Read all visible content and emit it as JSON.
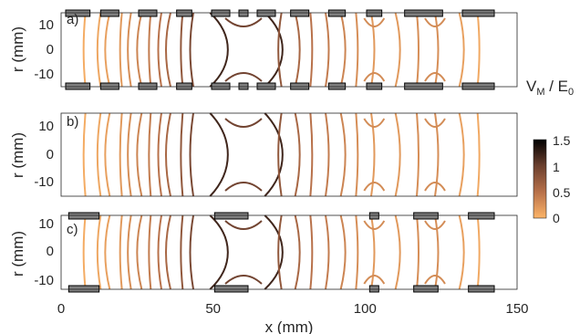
{
  "chart_data": [
    {
      "type": "contour",
      "panel_label": "a)",
      "ylabel": "r (mm)",
      "yticks": [
        "10",
        "0",
        "-10"
      ],
      "xlim": [
        0,
        150
      ],
      "ylim": [
        -15,
        15
      ],
      "electrodes": [
        [
          1.5,
          9.5
        ],
        [
          13,
          19
        ],
        [
          25.5,
          31.5
        ],
        [
          38,
          43
        ],
        [
          49.5,
          55.5
        ],
        [
          58.5,
          61.5
        ],
        [
          64.5,
          70.5
        ],
        [
          75.5,
          81.5
        ],
        [
          88,
          93.5
        ],
        [
          100.5,
          105.5
        ],
        [
          113,
          125.5
        ],
        [
          132,
          142.5
        ]
      ],
      "contours": [
        {
          "x": 8,
          "v": 0.06
        },
        {
          "x": 13,
          "v": 0.1
        },
        {
          "x": 16,
          "v": 0.15
        },
        {
          "x": 20,
          "v": 0.2
        },
        {
          "x": 23,
          "v": 0.28
        },
        {
          "x": 26.5,
          "v": 0.35
        },
        {
          "x": 29.5,
          "v": 0.42
        },
        {
          "x": 33,
          "v": 0.5
        },
        {
          "x": 36,
          "v": 0.6
        },
        {
          "x": 40,
          "v": 0.75
        },
        {
          "x": 43.5,
          "v": 0.9
        },
        {
          "x": 49,
          "v": 1.2,
          "type": "hourglass"
        },
        {
          "x": 67,
          "v": 1.2,
          "type": "hourglass"
        },
        {
          "x": 72.5,
          "v": 0.75
        },
        {
          "x": 77,
          "v": 0.6
        },
        {
          "x": 82,
          "v": 0.5
        },
        {
          "x": 87,
          "v": 0.42
        },
        {
          "x": 92,
          "v": 0.35
        },
        {
          "x": 97,
          "v": 0.28
        },
        {
          "x": 102,
          "v": 0.2
        },
        {
          "x": 110,
          "v": 0.2
        },
        {
          "x": 117,
          "v": 0.28
        },
        {
          "x": 123,
          "v": 0.28
        },
        {
          "x": 131,
          "v": 0.15
        },
        {
          "x": 137,
          "v": 0.08
        }
      ]
    },
    {
      "type": "contour",
      "panel_label": "b)",
      "ylabel": "r (mm)",
      "yticks": [
        "10",
        "0",
        "-10"
      ],
      "xlim": [
        0,
        150
      ],
      "ylim": [
        -15,
        15
      ],
      "electrodes": [],
      "contours": [
        {
          "x": 8,
          "v": 0.06
        },
        {
          "x": 13,
          "v": 0.1
        },
        {
          "x": 16,
          "v": 0.15
        },
        {
          "x": 20,
          "v": 0.2
        },
        {
          "x": 23,
          "v": 0.28
        },
        {
          "x": 26.5,
          "v": 0.35
        },
        {
          "x": 29.5,
          "v": 0.42
        },
        {
          "x": 33,
          "v": 0.5
        },
        {
          "x": 36,
          "v": 0.6
        },
        {
          "x": 40,
          "v": 0.75
        },
        {
          "x": 43.5,
          "v": 0.9
        },
        {
          "x": 49,
          "v": 1.2,
          "type": "hourglass"
        },
        {
          "x": 67,
          "v": 1.2,
          "type": "hourglass"
        },
        {
          "x": 72.5,
          "v": 0.75
        },
        {
          "x": 77,
          "v": 0.6
        },
        {
          "x": 82,
          "v": 0.5
        },
        {
          "x": 87,
          "v": 0.42
        },
        {
          "x": 92,
          "v": 0.35
        },
        {
          "x": 97,
          "v": 0.28
        },
        {
          "x": 102,
          "v": 0.2
        },
        {
          "x": 110,
          "v": 0.2
        },
        {
          "x": 117,
          "v": 0.28
        },
        {
          "x": 123,
          "v": 0.28
        },
        {
          "x": 131,
          "v": 0.15
        },
        {
          "x": 137,
          "v": 0.08
        }
      ]
    },
    {
      "type": "contour",
      "panel_label": "c)",
      "ylabel": "r (mm)",
      "yticks": [
        "10",
        "0",
        "-10"
      ],
      "xlabel": "x (mm)",
      "xticks": [
        "0",
        "50",
        "100",
        "150"
      ],
      "xlim": [
        0,
        150
      ],
      "ylim": [
        -15,
        15
      ],
      "electrodes": [
        [
          2.5,
          12.5
        ],
        [
          50.5,
          61.5
        ],
        [
          101.5,
          104.5
        ],
        [
          116,
          124
        ],
        [
          134,
          142.5
        ]
      ],
      "contours": [
        {
          "x": 8,
          "v": 0.06
        },
        {
          "x": 13,
          "v": 0.1
        },
        {
          "x": 16,
          "v": 0.15
        },
        {
          "x": 20,
          "v": 0.2
        },
        {
          "x": 23,
          "v": 0.28
        },
        {
          "x": 26.5,
          "v": 0.35
        },
        {
          "x": 29.5,
          "v": 0.42
        },
        {
          "x": 33,
          "v": 0.5
        },
        {
          "x": 36,
          "v": 0.6
        },
        {
          "x": 40,
          "v": 0.75
        },
        {
          "x": 43.5,
          "v": 0.9
        },
        {
          "x": 49,
          "v": 1.2,
          "type": "hourglass"
        },
        {
          "x": 67,
          "v": 1.2,
          "type": "hourglass"
        },
        {
          "x": 72.5,
          "v": 0.75
        },
        {
          "x": 77,
          "v": 0.6
        },
        {
          "x": 82,
          "v": 0.5
        },
        {
          "x": 87,
          "v": 0.42
        },
        {
          "x": 92,
          "v": 0.35
        },
        {
          "x": 97,
          "v": 0.28
        },
        {
          "x": 102,
          "v": 0.2
        },
        {
          "x": 110,
          "v": 0.2
        },
        {
          "x": 117,
          "v": 0.28
        },
        {
          "x": 123,
          "v": 0.28
        },
        {
          "x": 131,
          "v": 0.15
        },
        {
          "x": 137,
          "v": 0.08
        }
      ]
    }
  ],
  "colorbar": {
    "label_main": "V",
    "label_sub1": "M",
    "label_mid": " / E",
    "label_sub2": "0",
    "ticks": [
      "1.5",
      "1",
      "0.5",
      "0"
    ],
    "range": [
      0,
      1.5
    ],
    "colors": [
      "#fcb468",
      "#b8714a",
      "#6a3f2e",
      "#000000"
    ]
  },
  "colors": {
    "electrode_fill": "#7f7f7f",
    "electrode_stroke": "#000000",
    "axis": "#262626"
  }
}
